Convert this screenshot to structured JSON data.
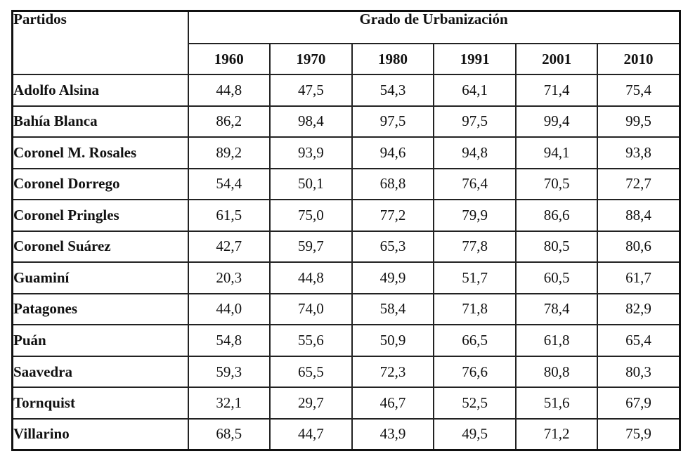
{
  "table": {
    "row_header_label": "Partidos",
    "group_header_label": "Grado de Urbanización",
    "years": [
      "1960",
      "1970",
      "1980",
      "1991",
      "2001",
      "2010"
    ],
    "rows": [
      {
        "partido": "Adolfo Alsina",
        "values": [
          "44,8",
          "47,5",
          "54,3",
          "64,1",
          "71,4",
          "75,4"
        ]
      },
      {
        "partido": "Bahía Blanca",
        "values": [
          "86,2",
          "98,4",
          "97,5",
          "97,5",
          "99,4",
          "99,5"
        ]
      },
      {
        "partido": "Coronel M. Rosales",
        "values": [
          "89,2",
          "93,9",
          "94,6",
          "94,8",
          "94,1",
          "93,8"
        ]
      },
      {
        "partido": "Coronel Dorrego",
        "values": [
          "54,4",
          "50,1",
          "68,8",
          "76,4",
          "70,5",
          "72,7"
        ]
      },
      {
        "partido": "Coronel Pringles",
        "values": [
          "61,5",
          "75,0",
          "77,2",
          "79,9",
          "86,6",
          "88,4"
        ]
      },
      {
        "partido": "Coronel Suárez",
        "values": [
          "42,7",
          "59,7",
          "65,3",
          "77,8",
          "80,5",
          "80,6"
        ]
      },
      {
        "partido": "Guaminí",
        "values": [
          "20,3",
          "44,8",
          "49,9",
          "51,7",
          "60,5",
          "61,7"
        ]
      },
      {
        "partido": "Patagones",
        "values": [
          "44,0",
          "74,0",
          "58,4",
          "71,8",
          "78,4",
          "82,9"
        ]
      },
      {
        "partido": "Puán",
        "values": [
          "54,8",
          "55,6",
          "50,9",
          "66,5",
          "61,8",
          "65,4"
        ]
      },
      {
        "partido": "Saavedra",
        "values": [
          "59,3",
          "65,5",
          "72,3",
          "76,6",
          "80,8",
          "80,3"
        ]
      },
      {
        "partido": "Tornquist",
        "values": [
          "32,1",
          "29,7",
          "46,7",
          "52,5",
          "51,6",
          "67,9"
        ]
      },
      {
        "partido": "Villarino",
        "values": [
          "68,5",
          "44,7",
          "43,9",
          "49,5",
          "71,2",
          "75,9"
        ]
      }
    ]
  }
}
